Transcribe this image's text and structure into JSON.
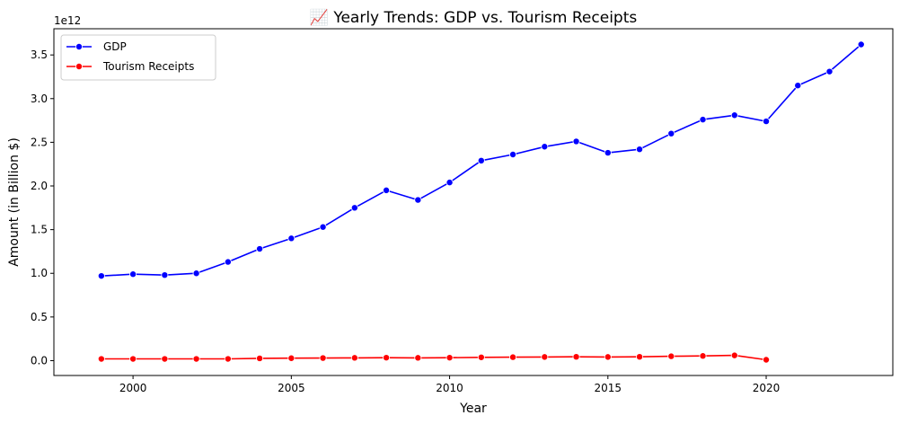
{
  "chart_data": {
    "type": "line",
    "title": "📈 Yearly Trends: GDP vs. Tourism Receipts",
    "xlabel": "Year",
    "ylabel": "Amount (in Billion $)",
    "y_offset_text": "1e12",
    "xlim": [
      1997.5,
      2024.0
    ],
    "ylim": [
      -0.17,
      3.8
    ],
    "x_ticks": [
      2000,
      2005,
      2010,
      2015,
      2020
    ],
    "y_ticks": [
      0.0,
      0.5,
      1.0,
      1.5,
      2.0,
      2.5,
      3.0,
      3.5
    ],
    "y_tick_labels": [
      "0.0",
      "0.5",
      "1.0",
      "1.5",
      "2.0",
      "2.5",
      "3.0",
      "3.5"
    ],
    "grid": false,
    "legend_position": "top-left",
    "series": [
      {
        "name": "GDP",
        "color": "#0000ff",
        "marker": "circle",
        "x": [
          1999,
          2000,
          2001,
          2002,
          2003,
          2004,
          2005,
          2006,
          2007,
          2008,
          2009,
          2010,
          2011,
          2012,
          2013,
          2014,
          2015,
          2016,
          2017,
          2018,
          2019,
          2020,
          2021,
          2022,
          2023
        ],
        "values": [
          0.97,
          0.99,
          0.98,
          1.0,
          1.13,
          1.28,
          1.4,
          1.53,
          1.75,
          1.95,
          1.84,
          2.04,
          2.29,
          2.36,
          2.45,
          2.51,
          2.38,
          2.42,
          2.6,
          2.76,
          2.81,
          2.74,
          3.15,
          3.31,
          3.62
        ]
      },
      {
        "name": "Tourism Receipts",
        "color": "#ff0000",
        "marker": "circle",
        "x": [
          1999,
          2000,
          2001,
          2002,
          2003,
          2004,
          2005,
          2006,
          2007,
          2008,
          2009,
          2010,
          2011,
          2012,
          2013,
          2014,
          2015,
          2016,
          2017,
          2018,
          2019,
          2020
        ],
        "values": [
          0.02,
          0.02,
          0.02,
          0.02,
          0.02,
          0.026,
          0.028,
          0.03,
          0.032,
          0.034,
          0.032,
          0.034,
          0.038,
          0.04,
          0.042,
          0.044,
          0.042,
          0.044,
          0.05,
          0.054,
          0.06,
          0.01
        ]
      }
    ]
  }
}
